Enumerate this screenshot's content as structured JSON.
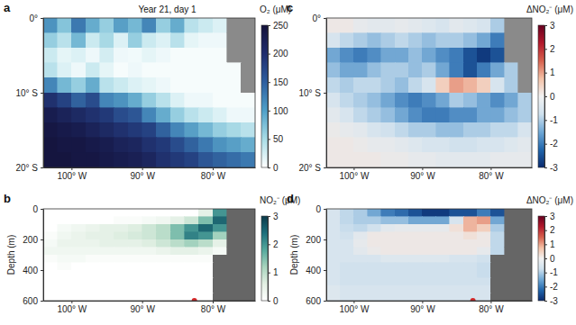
{
  "chart_data": [
    {
      "type": "heatmap",
      "panel": "a",
      "annotation": "Year 21, day 1",
      "x": [
        -103,
        -101,
        -99,
        -97,
        -95,
        -93,
        -91,
        -89,
        -87,
        -85,
        -83,
        -81,
        -79,
        -77,
        -75
      ],
      "y": [
        -1,
        -3,
        -5,
        -7,
        -9,
        -11,
        -13,
        -15,
        -17,
        -19
      ],
      "z": [
        [
          110,
          70,
          130,
          90,
          60,
          100,
          80,
          120,
          60,
          90,
          40,
          30,
          20,
          null,
          null
        ],
        [
          60,
          40,
          80,
          30,
          50,
          20,
          60,
          30,
          20,
          40,
          15,
          10,
          10,
          null,
          null
        ],
        [
          30,
          15,
          20,
          10,
          25,
          10,
          8,
          15,
          10,
          5,
          5,
          5,
          5,
          null,
          null
        ],
        [
          40,
          20,
          10,
          30,
          15,
          5,
          10,
          5,
          5,
          5,
          5,
          5,
          5,
          5,
          null
        ],
        [
          120,
          80,
          60,
          90,
          40,
          30,
          20,
          15,
          10,
          5,
          5,
          5,
          5,
          5,
          null
        ],
        [
          200,
          180,
          150,
          170,
          120,
          110,
          90,
          60,
          40,
          20,
          10,
          10,
          5,
          5,
          5
        ],
        [
          230,
          220,
          210,
          200,
          190,
          170,
          160,
          120,
          90,
          60,
          40,
          30,
          20,
          10,
          10
        ],
        [
          240,
          235,
          230,
          220,
          210,
          200,
          190,
          180,
          150,
          120,
          100,
          80,
          60,
          50,
          40
        ],
        [
          245,
          240,
          240,
          235,
          230,
          220,
          215,
          200,
          190,
          170,
          150,
          130,
          110,
          100,
          90
        ],
        [
          245,
          245,
          240,
          240,
          235,
          230,
          225,
          215,
          200,
          190,
          180,
          160,
          150,
          140,
          130
        ]
      ],
      "xlim": [
        -104,
        -74
      ],
      "xticks": [
        {
          "value": -100,
          "label": "100° W"
        },
        {
          "value": -90,
          "label": "90° W"
        },
        {
          "value": -80,
          "label": "80° W"
        }
      ],
      "ylim": [
        -20,
        0
      ],
      "yticks": [
        {
          "value": -20,
          "label": "20° S"
        },
        {
          "value": -10,
          "label": "10° S"
        },
        {
          "value": 0,
          "label": "0°"
        }
      ],
      "colorbar": {
        "title": "O₂ (μM)",
        "range": [
          0,
          250
        ],
        "ticks": [
          0,
          50,
          100,
          150,
          200,
          250
        ]
      }
    },
    {
      "type": "heatmap",
      "panel": "b",
      "y_label": "Depth (m)",
      "x": [
        -103,
        -101,
        -99,
        -97,
        -95,
        -93,
        -91,
        -89,
        -87,
        -85,
        -83,
        -81,
        -79,
        -77,
        -75
      ],
      "y": [
        25,
        75,
        125,
        175,
        225,
        275,
        325,
        375,
        425,
        475,
        525,
        575
      ],
      "z": [
        [
          0,
          0,
          0,
          0,
          0,
          0,
          0,
          0,
          0,
          0,
          0,
          0.5,
          2.0,
          null,
          null
        ],
        [
          0,
          0,
          0,
          0,
          0,
          0.1,
          0.1,
          0.2,
          0.3,
          0.5,
          0.8,
          1.5,
          2.5,
          null,
          null
        ],
        [
          0,
          0.2,
          0.3,
          0.4,
          0.5,
          0.5,
          0.6,
          0.8,
          1.0,
          1.5,
          2.0,
          2.5,
          2.0,
          null,
          null
        ],
        [
          0.1,
          0.3,
          0.4,
          0.5,
          0.5,
          0.6,
          0.7,
          0.8,
          1.0,
          1.5,
          2.2,
          2.0,
          1.2,
          null,
          null
        ],
        [
          0.2,
          0.4,
          0.4,
          0.4,
          0.5,
          0.5,
          0.5,
          0.6,
          0.8,
          1.0,
          1.2,
          1.0,
          0.5,
          null,
          null
        ],
        [
          0.3,
          0.3,
          0.3,
          0.3,
          0.3,
          0.3,
          0.3,
          0.3,
          0.4,
          0.5,
          0.5,
          0.4,
          0.2,
          null,
          null
        ],
        [
          0.1,
          0.2,
          0.2,
          0.1,
          0.1,
          0.1,
          0.1,
          0.1,
          0.1,
          0.1,
          0.1,
          0.1,
          null,
          null,
          null
        ],
        [
          0,
          0.1,
          0,
          0,
          0,
          0,
          0,
          0,
          0,
          0,
          0,
          0,
          null,
          null,
          null
        ],
        [
          0,
          0,
          0,
          0,
          0,
          0,
          0,
          0,
          0,
          0,
          0,
          0,
          null,
          null,
          null
        ],
        [
          0,
          0,
          0,
          0,
          0,
          0,
          0,
          0,
          0,
          0,
          0,
          0,
          null,
          null,
          null
        ],
        [
          0,
          0,
          0,
          0,
          0,
          0,
          0,
          0,
          0,
          0,
          0,
          0,
          null,
          null,
          null
        ],
        [
          0,
          0,
          0,
          0,
          0,
          0,
          0,
          0,
          0,
          0,
          0,
          0,
          null,
          null,
          null
        ]
      ],
      "markers": {
        "x": [
          -82.6
        ],
        "y": [
          600
        ],
        "color": "#d62728"
      },
      "xlim": [
        -104,
        -74
      ],
      "xticks": [
        {
          "value": -100,
          "label": "100° W"
        },
        {
          "value": -90,
          "label": "90° W"
        },
        {
          "value": -80,
          "label": "80° W"
        }
      ],
      "ylim": [
        600,
        0
      ],
      "yticks": [
        0,
        200,
        400,
        600
      ],
      "colorbar": {
        "title": "NO₂⁻ (μM)",
        "range": [
          0,
          3
        ],
        "ticks": [
          0,
          1,
          2,
          3
        ]
      }
    },
    {
      "type": "heatmap",
      "panel": "c",
      "x": [
        -103,
        -101,
        -99,
        -97,
        -95,
        -93,
        -91,
        -89,
        -87,
        -85,
        -83,
        -81,
        -79,
        -77,
        -75
      ],
      "y": [
        -1,
        -3,
        -5,
        -7,
        -9,
        -11,
        -13,
        -15,
        -17,
        -19
      ],
      "z": [
        [
          0,
          0,
          -0.2,
          -0.3,
          -0.3,
          -0.2,
          -0.3,
          -0.4,
          -0.5,
          -0.3,
          -0.4,
          -0.5,
          -1.0,
          null,
          null
        ],
        [
          -0.5,
          -0.8,
          -1.0,
          -1.2,
          -1.0,
          -0.8,
          -1.0,
          -1.2,
          -1.0,
          -1.0,
          -1.2,
          -1.5,
          -2.0,
          null,
          null
        ],
        [
          -1.5,
          -1.8,
          -2.0,
          -1.8,
          -1.5,
          -1.5,
          -1.2,
          -1.5,
          -1.8,
          -2.0,
          -2.5,
          -2.8,
          -2.5,
          null,
          null
        ],
        [
          -1.2,
          -1.5,
          -1.5,
          -1.2,
          -1.0,
          -1.0,
          -1.2,
          -1.0,
          -1.5,
          -2.0,
          -2.5,
          -2.0,
          -1.5,
          -1.0,
          null
        ],
        [
          -0.8,
          -1.0,
          -0.8,
          -0.8,
          -1.0,
          -1.2,
          -0.8,
          -0.5,
          0.5,
          1.0,
          0.8,
          0.5,
          -0.5,
          -1.0,
          null
        ],
        [
          -0.5,
          -0.8,
          -1.0,
          -1.2,
          -1.5,
          -1.8,
          -2.0,
          -1.8,
          -1.5,
          -1.0,
          -1.2,
          -1.5,
          -1.8,
          -1.5,
          -1.0
        ],
        [
          -0.3,
          -0.5,
          -0.8,
          -1.0,
          -1.2,
          -1.5,
          -1.8,
          -2.0,
          -2.0,
          -1.8,
          -1.8,
          -1.5,
          -1.5,
          -1.2,
          -1.0
        ],
        [
          -0.1,
          -0.2,
          -0.3,
          -0.5,
          -0.6,
          -0.8,
          -1.0,
          -1.0,
          -1.2,
          -1.2,
          -1.0,
          -1.0,
          -0.8,
          -0.8,
          -0.5
        ],
        [
          0,
          0,
          -0.1,
          -0.2,
          -0.2,
          -0.3,
          -0.4,
          -0.5,
          -0.5,
          -0.6,
          -0.6,
          -0.5,
          -0.5,
          -0.4,
          -0.3
        ],
        [
          0,
          0,
          0,
          0,
          -0.1,
          -0.1,
          -0.2,
          -0.2,
          -0.3,
          -0.3,
          -0.3,
          -0.3,
          -0.2,
          -0.2,
          -0.2
        ]
      ],
      "xlim": [
        -104,
        -74
      ],
      "xticks": [
        {
          "value": -100,
          "label": "100° W"
        },
        {
          "value": -90,
          "label": "90° W"
        },
        {
          "value": -80,
          "label": "80° W"
        }
      ],
      "ylim": [
        -20,
        0
      ],
      "yticks": [
        {
          "value": -20,
          "label": "20° S"
        },
        {
          "value": -10,
          "label": "10° S"
        },
        {
          "value": 0,
          "label": "0°"
        }
      ],
      "colorbar": {
        "title": "ΔNO₂⁻ (μM)",
        "range": [
          -3,
          3
        ],
        "ticks": [
          -3,
          -2,
          -1,
          0,
          1,
          2,
          3
        ]
      }
    },
    {
      "type": "heatmap",
      "panel": "d",
      "y_label": "Depth (m)",
      "x": [
        -103,
        -101,
        -99,
        -97,
        -95,
        -93,
        -91,
        -89,
        -87,
        -85,
        -83,
        -81,
        -79,
        -77,
        -75
      ],
      "y": [
        25,
        75,
        125,
        175,
        225,
        275,
        325,
        375,
        425,
        475,
        525,
        575
      ],
      "z": [
        [
          -0.5,
          -0.8,
          -1.0,
          -1.5,
          -2.0,
          -2.2,
          -2.5,
          -2.8,
          -2.8,
          -2.5,
          -2.5,
          -2.0,
          -2.5,
          null,
          null
        ],
        [
          -0.5,
          -0.8,
          -1.0,
          -1.0,
          -1.2,
          -1.2,
          -1.5,
          -1.5,
          -1.5,
          -0.5,
          0.8,
          1.0,
          -1.5,
          null,
          null
        ],
        [
          -0.5,
          -0.7,
          -0.8,
          -0.6,
          -0.3,
          -0.2,
          -0.2,
          -0.2,
          -0.2,
          0.2,
          0.8,
          0.5,
          -1.0,
          null,
          null
        ],
        [
          -0.5,
          -0.6,
          -0.3,
          0,
          0,
          0,
          0,
          0,
          0,
          0,
          0.2,
          0,
          -0.8,
          null,
          null
        ],
        [
          -0.5,
          -0.5,
          -0.2,
          0,
          0,
          0,
          0,
          0,
          0,
          0,
          0,
          0,
          -0.8,
          null,
          null
        ],
        [
          -0.5,
          -0.5,
          -0.3,
          -0.1,
          0,
          0,
          0,
          0,
          0,
          0,
          0,
          -0.2,
          -0.8,
          null,
          null
        ],
        [
          -0.5,
          -0.5,
          -0.5,
          -0.5,
          -0.4,
          -0.4,
          -0.4,
          -0.4,
          -0.4,
          -0.5,
          -0.5,
          -0.6,
          null,
          null,
          null
        ],
        [
          -0.5,
          -0.6,
          -0.6,
          -0.6,
          -0.6,
          -0.6,
          -0.6,
          -0.6,
          -0.6,
          -0.6,
          -0.6,
          -0.7,
          null,
          null,
          null
        ],
        [
          -0.5,
          -0.6,
          -0.6,
          -0.6,
          -0.6,
          -0.6,
          -0.6,
          -0.6,
          -0.6,
          -0.6,
          -0.6,
          -0.7,
          null,
          null,
          null
        ],
        [
          -0.5,
          -0.6,
          -0.6,
          -0.6,
          -0.6,
          -0.6,
          -0.6,
          -0.6,
          -0.6,
          -0.6,
          -0.6,
          -0.6,
          null,
          null,
          null
        ],
        [
          -0.4,
          -0.5,
          -0.5,
          -0.5,
          -0.5,
          -0.5,
          -0.5,
          -0.5,
          -0.5,
          -0.5,
          -0.5,
          -0.5,
          null,
          null,
          null
        ],
        [
          -0.4,
          -0.5,
          -0.5,
          -0.5,
          -0.5,
          -0.5,
          -0.5,
          -0.5,
          -0.5,
          -0.5,
          -0.5,
          -0.5,
          null,
          null,
          null
        ]
      ],
      "markers": {
        "x": [
          -82.6
        ],
        "y": [
          600
        ],
        "color": "#d62728"
      },
      "xlim": [
        -104,
        -74
      ],
      "xticks": [
        {
          "value": -100,
          "label": "100° W"
        },
        {
          "value": -90,
          "label": "90° W"
        },
        {
          "value": -80,
          "label": "80° W"
        }
      ],
      "ylim": [
        600,
        0
      ],
      "yticks": [
        0,
        200,
        400,
        600
      ],
      "colorbar": {
        "title": "ΔNO₂⁻ (μM)",
        "range": [
          -3,
          3
        ],
        "ticks": [
          -3,
          -2,
          -1,
          0,
          1,
          2,
          3
        ]
      }
    }
  ]
}
